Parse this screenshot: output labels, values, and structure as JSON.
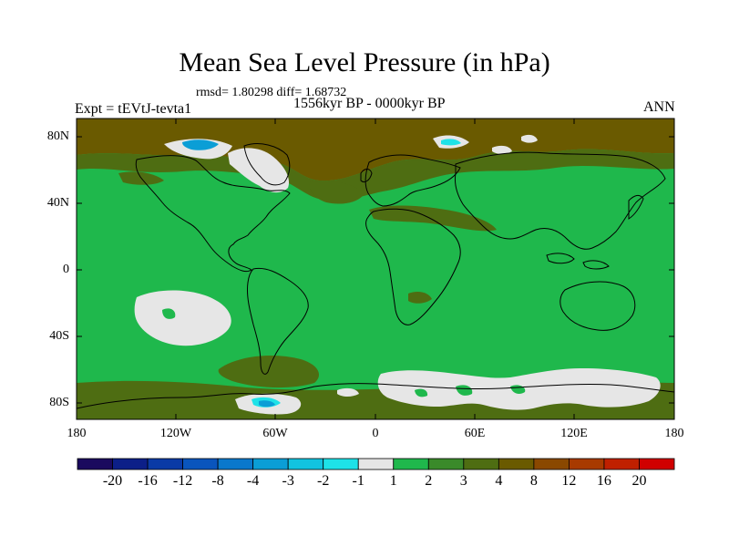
{
  "title": "Mean Sea Level Pressure (in hPa)",
  "stats": "rmsd= 1.80298 diff= 1.68732",
  "experiment": "Expt = tEVtJ-tevta1",
  "period": "1556kyr BP - 0000kyr BP",
  "season": "ANN",
  "map": {
    "lat_labels": [
      "80N",
      "40N",
      "0",
      "40S",
      "80S"
    ],
    "lon_labels": [
      "180",
      "120W",
      "60W",
      "0",
      "60E",
      "120E",
      "180"
    ],
    "background_color": "#1fb84c"
  },
  "colorbar": {
    "colors": [
      "#1a0a5e",
      "#0c1f88",
      "#0a3aa6",
      "#0a55bd",
      "#0a78cc",
      "#0b9ed6",
      "#12c3e0",
      "#1ee2e8",
      "#e6e6e6",
      "#1fb84c",
      "#3a8a2a",
      "#4e6d12",
      "#6a5a00",
      "#8a4800",
      "#a83a00",
      "#c02000",
      "#d00000"
    ],
    "labels": [
      "-20",
      "-16",
      "-12",
      "-8",
      "-4",
      "-3",
      "-2",
      "-1",
      "1",
      "2",
      "3",
      "4",
      "8",
      "12",
      "16",
      "20"
    ]
  }
}
